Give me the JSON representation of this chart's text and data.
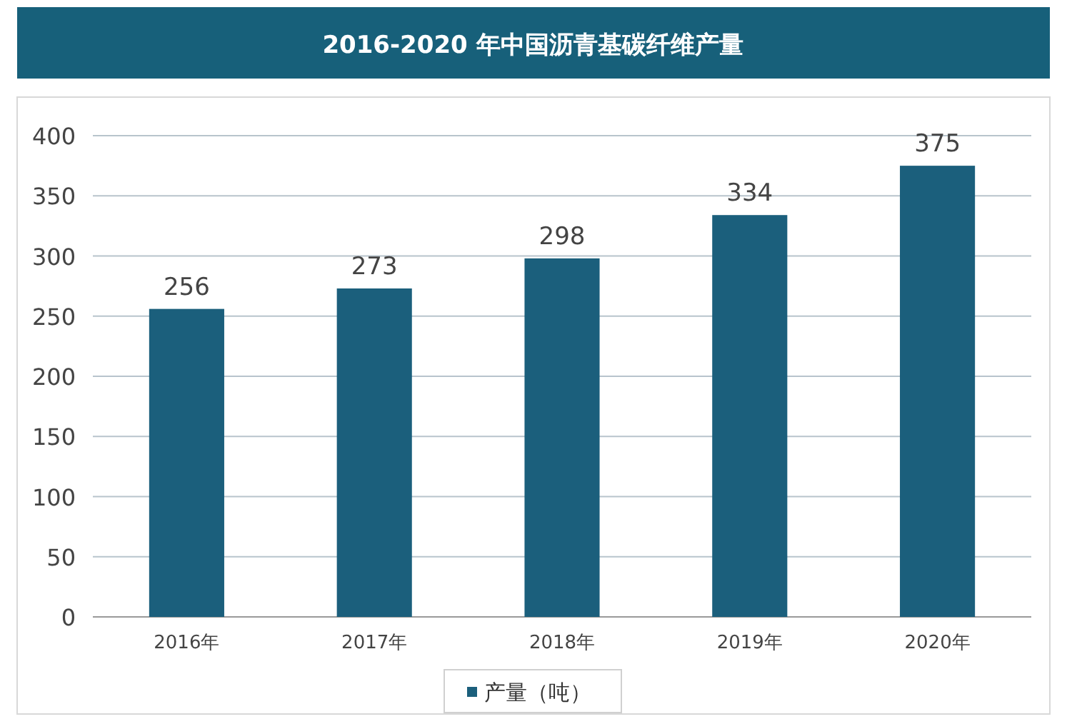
{
  "chart_data": {
    "type": "bar",
    "title": "2016-2020 年中国沥青基碳纤维产量",
    "categories": [
      "2016年",
      "2017年",
      "2018年",
      "2019年",
      "2020年"
    ],
    "series": [
      {
        "name": "产量（吨）",
        "color": "#1b5f7c",
        "values": [
          256,
          273,
          298,
          334,
          375
        ]
      }
    ],
    "ylim": [
      0,
      400
    ],
    "yticks": [
      0,
      50,
      100,
      150,
      200,
      250,
      300,
      350,
      400
    ],
    "grid": "y",
    "data_labels": true,
    "legend": "bottom"
  }
}
